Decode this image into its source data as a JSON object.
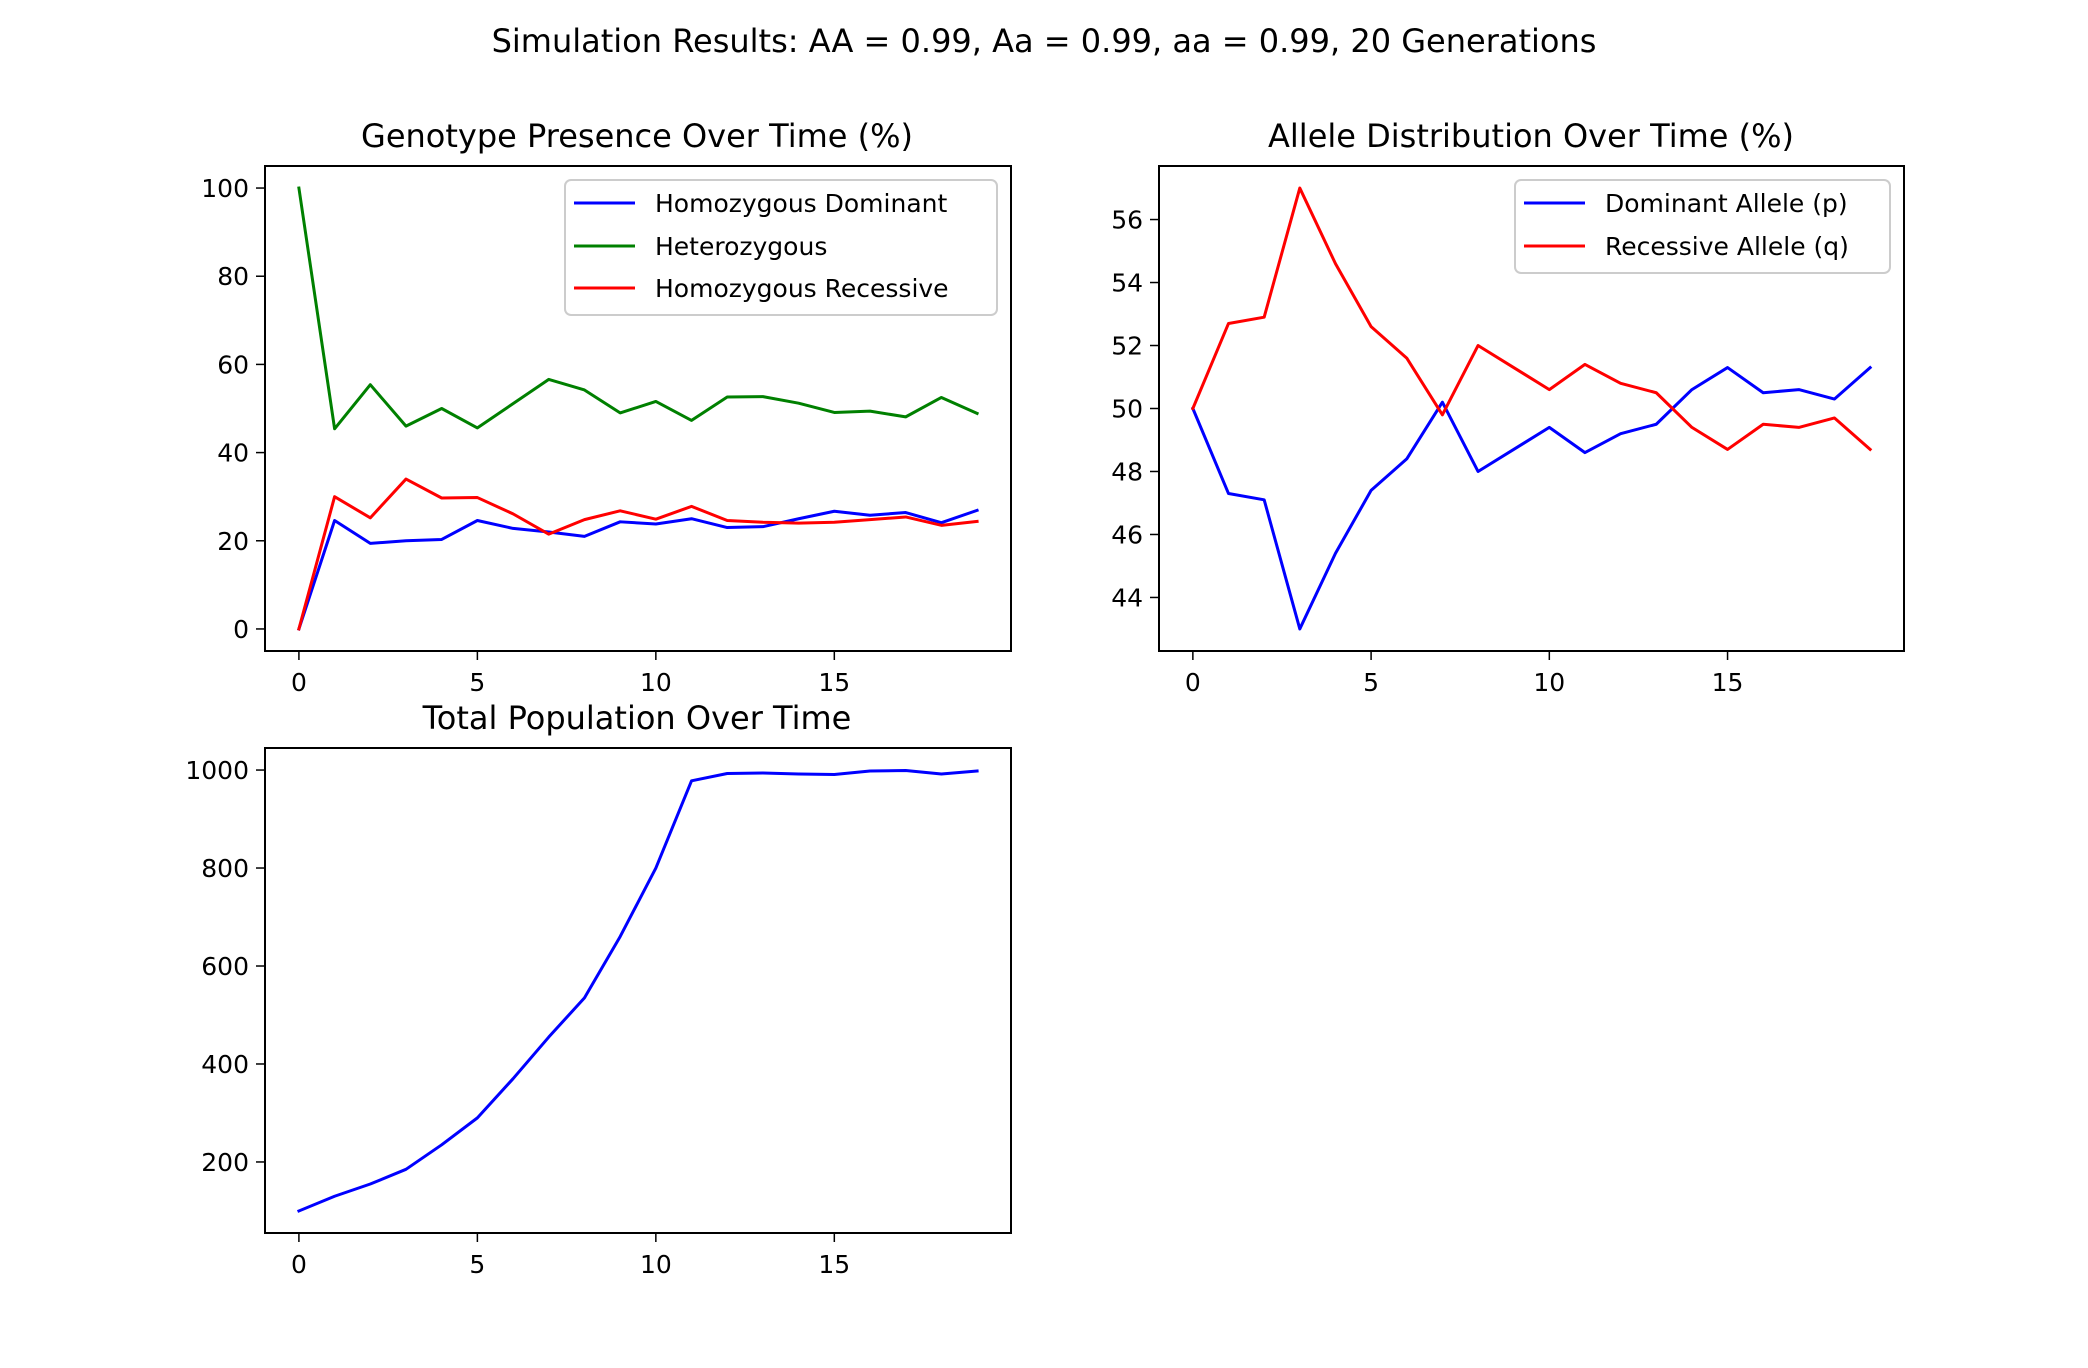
{
  "figure": {
    "suptitle": "Simulation Results: AA = 0.99, Aa = 0.99, aa = 0.99, 20 Generations"
  },
  "chart_data": [
    {
      "type": "line",
      "title": "Genotype Presence Over Time (%)",
      "xlabel": "",
      "ylabel": "",
      "xlim": [
        -0.95,
        19.95
      ],
      "ylim": [
        -5,
        105
      ],
      "xticks": [
        0,
        5,
        10,
        15
      ],
      "yticks": [
        0,
        20,
        40,
        60,
        80,
        100
      ],
      "grid": false,
      "legend": "top-right",
      "x": [
        0,
        1,
        2,
        3,
        4,
        5,
        6,
        7,
        8,
        9,
        10,
        11,
        12,
        13,
        14,
        15,
        16,
        17,
        18,
        19
      ],
      "series": [
        {
          "name": "Homozygous Dominant",
          "color": "#0000ff",
          "values": [
            0,
            24.6,
            19.4,
            20.0,
            20.3,
            24.6,
            22.8,
            22.0,
            21.0,
            24.3,
            23.8,
            25.0,
            23.0,
            23.2,
            25.0,
            26.7,
            25.8,
            26.4,
            24.1,
            26.9
          ]
        },
        {
          "name": "Heterozygous",
          "color": "#008000",
          "values": [
            100,
            45.4,
            55.4,
            46.0,
            50.0,
            45.6,
            51.1,
            56.6,
            54.2,
            49.0,
            51.6,
            47.3,
            52.6,
            52.7,
            51.2,
            49.1,
            49.4,
            48.1,
            52.5,
            48.9
          ]
        },
        {
          "name": "Homozygous Recessive",
          "color": "#ff0000",
          "values": [
            0,
            30.0,
            25.2,
            34.0,
            29.7,
            29.8,
            26.1,
            21.5,
            24.8,
            26.8,
            24.9,
            27.8,
            24.6,
            24.2,
            24.0,
            24.2,
            24.8,
            25.4,
            23.5,
            24.4
          ]
        }
      ]
    },
    {
      "type": "line",
      "title": "Allele Distribution Over Time (%)",
      "xlabel": "",
      "ylabel": "",
      "xlim": [
        -0.95,
        19.95
      ],
      "ylim": [
        42.3,
        57.7
      ],
      "xticks": [
        0,
        5,
        10,
        15
      ],
      "yticks": [
        44,
        46,
        48,
        50,
        52,
        54,
        56
      ],
      "grid": false,
      "legend": "top-right",
      "x": [
        0,
        1,
        2,
        3,
        4,
        5,
        6,
        7,
        8,
        9,
        10,
        11,
        12,
        13,
        14,
        15,
        16,
        17,
        18,
        19
      ],
      "series": [
        {
          "name": "Dominant Allele (p)",
          "color": "#0000ff",
          "values": [
            50.0,
            47.3,
            47.1,
            43.0,
            45.4,
            47.4,
            48.4,
            50.2,
            48.0,
            48.7,
            49.4,
            48.6,
            49.2,
            49.5,
            50.6,
            51.3,
            50.5,
            50.6,
            50.3,
            51.3
          ]
        },
        {
          "name": "Recessive Allele (q)",
          "color": "#ff0000",
          "values": [
            50.0,
            52.7,
            52.9,
            57.0,
            54.6,
            52.6,
            51.6,
            49.8,
            52.0,
            51.3,
            50.6,
            51.4,
            50.8,
            50.5,
            49.4,
            48.7,
            49.5,
            49.4,
            49.7,
            48.7
          ]
        }
      ]
    },
    {
      "type": "line",
      "title": "Total Population Over Time",
      "xlabel": "",
      "ylabel": "",
      "xlim": [
        -0.95,
        19.95
      ],
      "ylim": [
        55,
        1045
      ],
      "xticks": [
        0,
        5,
        10,
        15
      ],
      "yticks": [
        200,
        400,
        600,
        800,
        1000
      ],
      "grid": false,
      "legend": "",
      "x": [
        0,
        1,
        2,
        3,
        4,
        5,
        6,
        7,
        8,
        9,
        10,
        11,
        12,
        13,
        14,
        15,
        16,
        17,
        18,
        19
      ],
      "series": [
        {
          "name": "",
          "color": "#0000ff",
          "values": [
            100,
            130,
            155,
            185,
            235,
            290,
            370,
            455,
            535,
            660,
            800,
            978,
            993,
            994,
            992,
            991,
            998,
            999,
            992,
            998
          ]
        }
      ]
    }
  ]
}
